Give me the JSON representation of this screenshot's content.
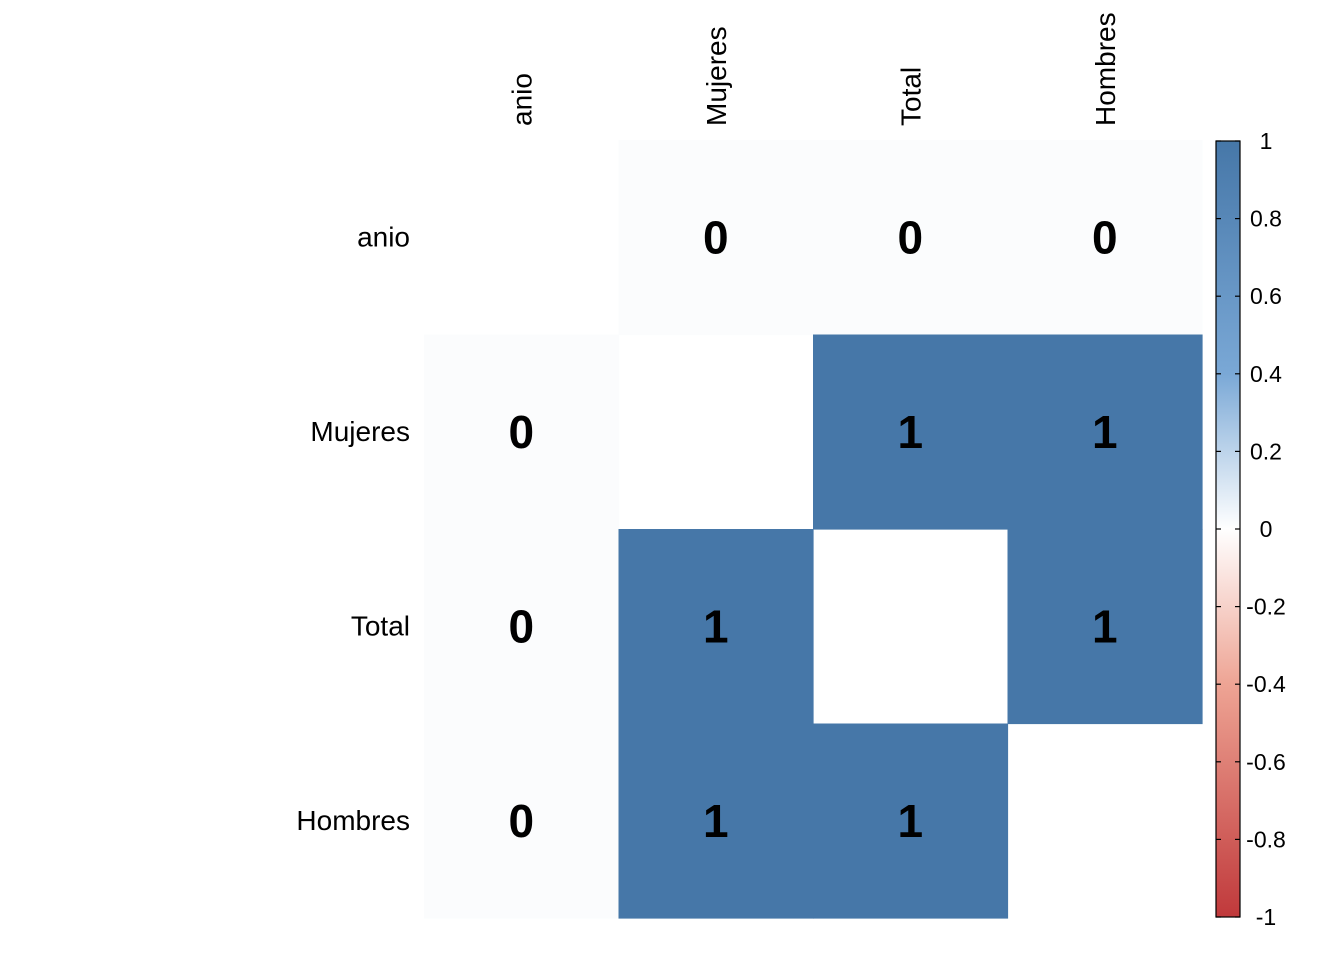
{
  "chart_data": {
    "type": "heatmap",
    "title": "",
    "rows": [
      "anio",
      "Mujeres",
      "Total",
      "Hombres"
    ],
    "columns": [
      "anio",
      "Mujeres",
      "Total",
      "Hombres"
    ],
    "values": [
      [
        null,
        0,
        0,
        0
      ],
      [
        0,
        null,
        1,
        1
      ],
      [
        0,
        1,
        null,
        1
      ],
      [
        0,
        1,
        1,
        null
      ]
    ],
    "value_labels": [
      [
        null,
        "0",
        "0",
        "0"
      ],
      [
        "0",
        null,
        "1",
        "1"
      ],
      [
        "0",
        "1",
        null,
        "1"
      ],
      [
        "0",
        "1",
        "1",
        null
      ]
    ],
    "colorbar": {
      "range": [
        -1,
        1
      ],
      "ticks": [
        "1",
        "0.8",
        "0.6",
        "0.4",
        "0.2",
        "0",
        "-0.2",
        "-0.4",
        "-0.6",
        "-0.8",
        "-1"
      ],
      "tick_values": [
        1,
        0.8,
        0.6,
        0.4,
        0.2,
        0,
        -0.2,
        -0.4,
        -0.6,
        -0.8,
        -1
      ],
      "color_low": "#c0393b",
      "color_mid": "#ffffff",
      "color_high": "#4677a8",
      "position": "right"
    },
    "grid": false
  }
}
